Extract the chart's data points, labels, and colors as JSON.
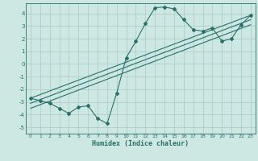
{
  "title": "",
  "xlabel": "Humidex (Indice chaleur)",
  "bg_color": "#cde8e3",
  "grid_color": "#aececa",
  "line_color": "#2a7068",
  "xlim": [
    -0.5,
    23.5
  ],
  "ylim": [
    -5.5,
    4.8
  ],
  "yticks": [
    -5,
    -4,
    -3,
    -2,
    -1,
    0,
    1,
    2,
    3,
    4
  ],
  "xticks": [
    0,
    1,
    2,
    3,
    4,
    5,
    6,
    7,
    8,
    9,
    10,
    11,
    12,
    13,
    14,
    15,
    16,
    17,
    18,
    19,
    20,
    21,
    22,
    23
  ],
  "curve1_x": [
    0,
    1,
    2,
    3,
    4,
    5,
    6,
    7,
    8,
    9,
    10,
    11,
    12,
    13,
    14,
    15,
    16,
    17,
    18,
    19,
    20,
    21,
    22,
    23
  ],
  "curve1_y": [
    -2.7,
    -2.9,
    -3.1,
    -3.5,
    -3.9,
    -3.4,
    -3.3,
    -4.3,
    -4.7,
    -2.3,
    0.5,
    1.8,
    3.2,
    4.45,
    4.5,
    4.35,
    3.5,
    2.7,
    2.6,
    2.85,
    1.8,
    2.0,
    3.1,
    3.85
  ],
  "line2_x": [
    0,
    23
  ],
  "line2_y": [
    -2.7,
    3.85
  ],
  "line3_x": [
    0,
    23
  ],
  "line3_y": [
    -3.1,
    3.5
  ],
  "line4_x": [
    0,
    23
  ],
  "line4_y": [
    -3.5,
    3.1
  ]
}
